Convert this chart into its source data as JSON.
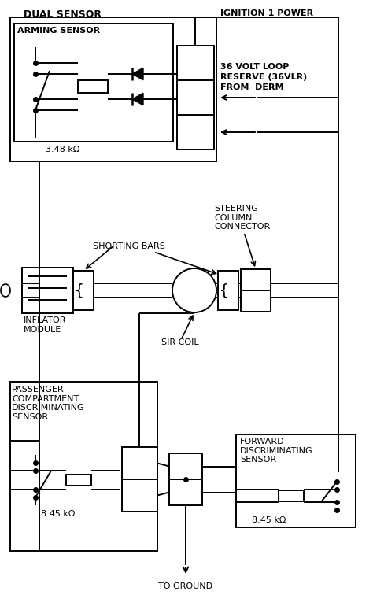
{
  "bg_color": "#ffffff",
  "line_color": "#000000",
  "labels": {
    "dual_sensor": "DUAL SENSOR",
    "arming_sensor": "ARMING SENSOR",
    "resistance1": "3.48 kΩ",
    "ignition": "IGNITION 1 POWER",
    "volt_loop": "36 VOLT LOOP\nRESERVE (36VLR)\nFROM  DERM",
    "steering_col": "STEERING\nCOLUMN\nCONNECTOR",
    "shorting_bars": "SHORTING BARS",
    "inflator": "INFLATOR\nMODULE",
    "sir_coil": "SIR COIL",
    "passenger": "PASSENGER\nCOMPARTMENT\nDISCRIMINATING\nSENSOR",
    "forward": "FORWARD\nDISCRIMINATING\nSENSOR",
    "resistance2": "8.45 kΩ",
    "resistance3": "8.45 kΩ",
    "to_ground": "TO GROUND"
  }
}
